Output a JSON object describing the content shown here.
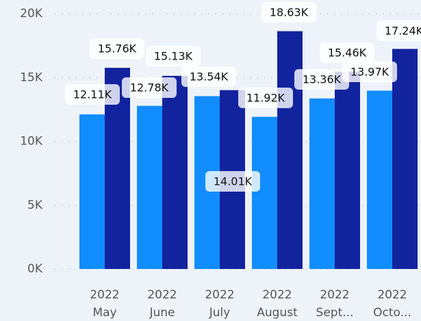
{
  "chart_data": {
    "type": "bar",
    "categories": [
      [
        "2022",
        "May"
      ],
      [
        "2022",
        "June"
      ],
      [
        "2022",
        "July"
      ],
      [
        "2022",
        "August"
      ],
      [
        "2022",
        "Sept..."
      ],
      [
        "2022",
        "Octo..."
      ]
    ],
    "series": [
      {
        "color": "#118DFF",
        "values": [
          12110,
          12780,
          13540,
          11920,
          13360,
          13970
        ],
        "value_labels": [
          "12.11K",
          "12.78K",
          "13.54K",
          "11.92K",
          "13.36K",
          "13.97K"
        ]
      },
      {
        "color": "#12239E",
        "values": [
          15760,
          15130,
          14010,
          18630,
          15460,
          17240
        ],
        "value_labels": [
          "15.76K",
          "15.13K",
          "14.01K",
          "18.63K",
          "15.46K",
          "17.24K"
        ]
      }
    ],
    "ylim": [
      0,
      20000
    ],
    "yticks": [
      {
        "value": 0,
        "label": "0K"
      },
      {
        "value": 5000,
        "label": "5K"
      },
      {
        "value": 10000,
        "label": "10K"
      },
      {
        "value": 15000,
        "label": "15K"
      },
      {
        "value": 20000,
        "label": "20K"
      }
    ],
    "grid": true
  }
}
